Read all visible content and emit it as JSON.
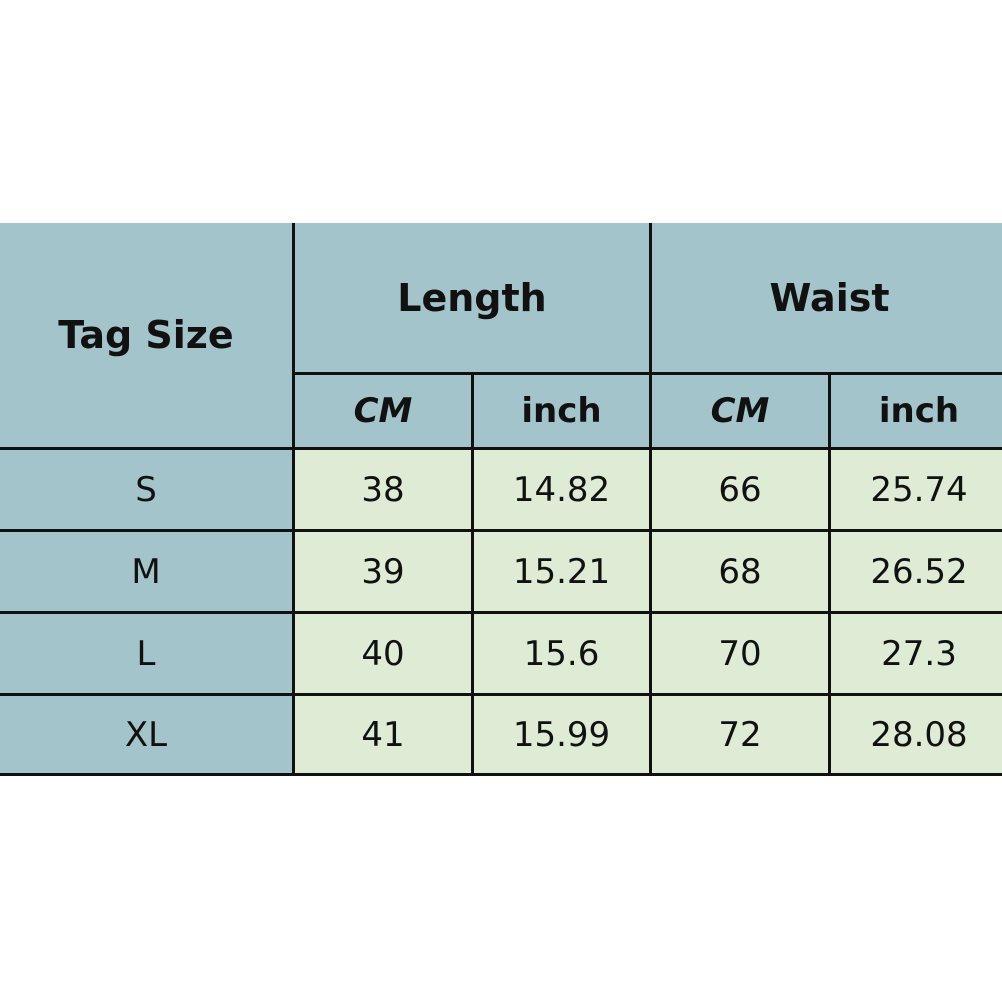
{
  "header": {
    "tag_size": "Tag Size",
    "length": "Length",
    "waist": "Waist",
    "units": [
      "CM",
      "inch",
      "CM",
      "inch"
    ]
  },
  "rows": [
    {
      "size": "S",
      "length_cm": "38",
      "length_inch": "14.82",
      "waist_cm": "66",
      "waist_inch": "25.74"
    },
    {
      "size": "M",
      "length_cm": "39",
      "length_inch": "15.21",
      "waist_cm": "68",
      "waist_inch": "26.52"
    },
    {
      "size": "L",
      "length_cm": "40",
      "length_inch": "15.6",
      "waist_cm": "70",
      "waist_inch": "27.3"
    },
    {
      "size": "XL",
      "length_cm": "41",
      "length_inch": "15.99",
      "waist_cm": "72",
      "waist_inch": "28.08"
    }
  ],
  "colors": {
    "header_bg": "#a4c4cb",
    "body_bg": "#deebd5",
    "border": "#111111"
  }
}
